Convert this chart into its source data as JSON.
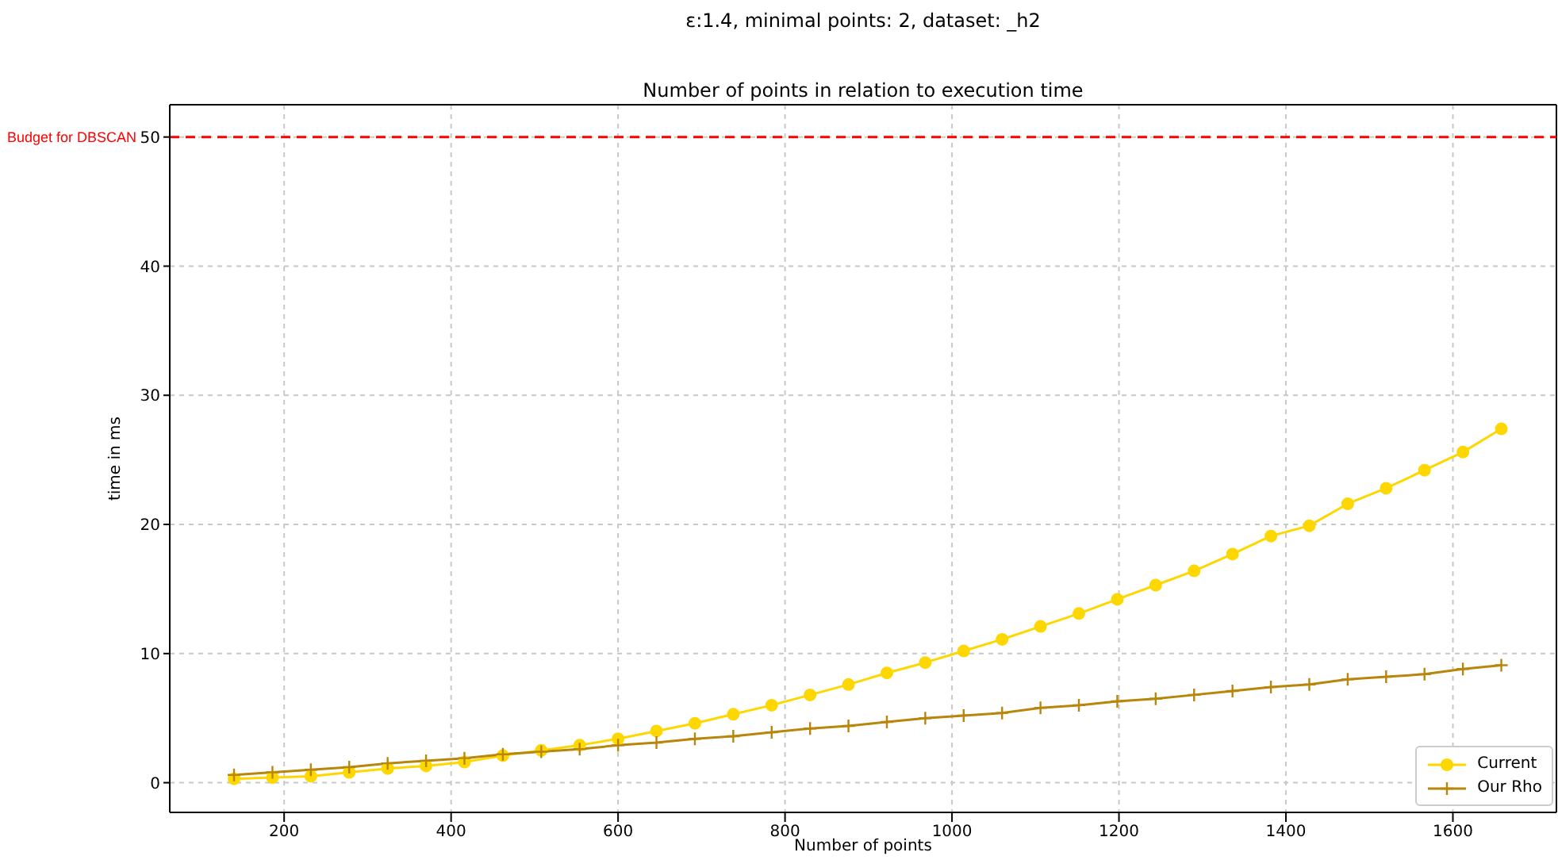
{
  "chart_data": {
    "type": "line",
    "title": "Number of points in relation to execution time",
    "subtitle": "ε:1.4, minimal points: 2, dataset: _h2",
    "xlabel": "Number of points",
    "ylabel": "time in ms",
    "x": [
      140,
      186,
      232,
      278,
      324,
      370,
      416,
      462,
      508,
      554,
      600,
      646,
      692,
      738,
      784,
      830,
      876,
      922,
      968,
      1014,
      1060,
      1106,
      1152,
      1198,
      1244,
      1290,
      1336,
      1382,
      1428,
      1474,
      1520,
      1566,
      1612,
      1658
    ],
    "series": [
      {
        "name": "Current",
        "color": "#ffd700",
        "marker": "circle",
        "values": [
          0.3,
          0.4,
          0.5,
          0.8,
          1.1,
          1.3,
          1.6,
          2.1,
          2.5,
          2.9,
          3.4,
          4.0,
          4.6,
          5.3,
          6.0,
          6.8,
          7.6,
          8.5,
          9.3,
          10.2,
          11.1,
          12.1,
          13.1,
          14.2,
          15.3,
          16.4,
          17.7,
          19.1,
          19.9,
          21.6,
          22.8,
          24.2,
          25.6,
          27.4
        ]
      },
      {
        "name": "Our Rho",
        "color": "#b8860b",
        "marker": "cross",
        "values": [
          0.6,
          0.8,
          1.0,
          1.2,
          1.5,
          1.7,
          1.9,
          2.2,
          2.4,
          2.6,
          2.9,
          3.1,
          3.4,
          3.6,
          3.9,
          4.2,
          4.4,
          4.7,
          5.0,
          5.2,
          5.4,
          5.8,
          6.0,
          6.3,
          6.5,
          6.8,
          7.1,
          7.4,
          7.6,
          8.0,
          8.2,
          8.4,
          8.8,
          9.1
        ]
      }
    ],
    "xlim": [
      63,
      1724
    ],
    "xticks": [
      200,
      400,
      600,
      800,
      1000,
      1200,
      1400,
      1600
    ],
    "ylim": [
      -2.3,
      52.5
    ],
    "yticks": [
      0,
      10,
      20,
      30,
      40,
      50
    ],
    "ref_lines": [
      {
        "axis": "y",
        "value": 50,
        "label": "Budget for DBSCAN",
        "color": "#ff0000",
        "line_style": "dashed"
      }
    ],
    "grid": true,
    "legend": "bottom right",
    "line_style": "solid"
  }
}
